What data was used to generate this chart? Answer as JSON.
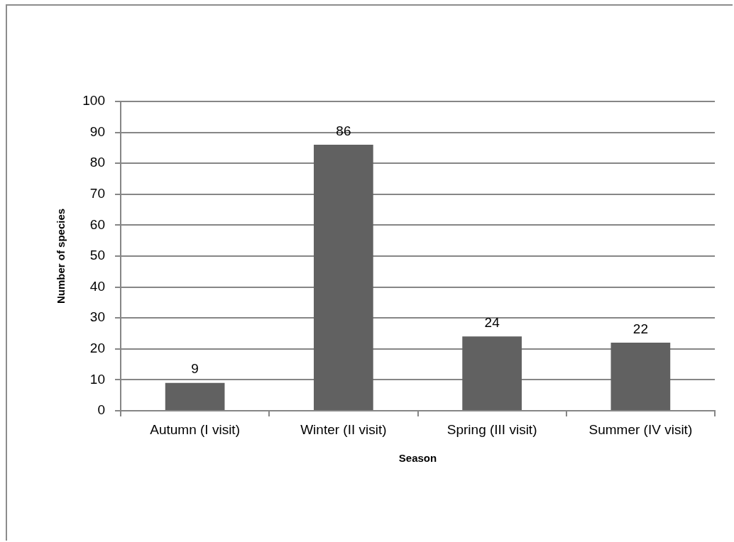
{
  "chart_data": {
    "type": "bar",
    "xlabel": "Season",
    "ylabel": "Number of species",
    "categories": [
      "Autumn (I visit)",
      "Winter (II visit)",
      "Spring (III visit)",
      "Summer (IV visit)"
    ],
    "values": [
      9,
      86,
      24,
      22
    ],
    "color": "#616161",
    "ylim": [
      0,
      100
    ],
    "yticks": [
      0,
      10,
      20,
      30,
      40,
      50,
      60,
      70,
      80,
      90,
      100
    ],
    "grid": "y",
    "data_labels": true
  }
}
